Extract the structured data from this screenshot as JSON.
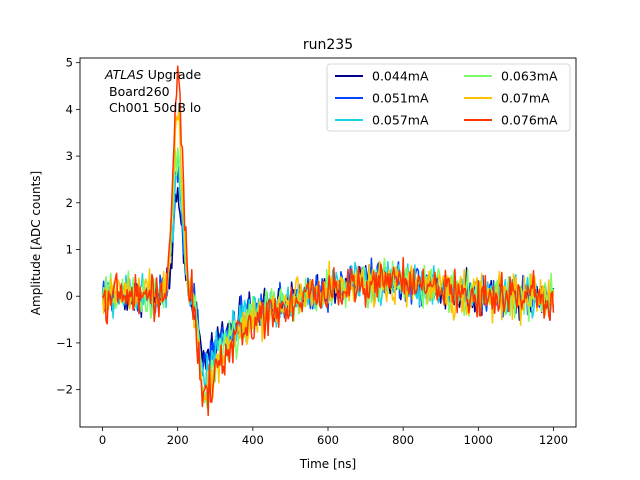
{
  "chart_data": {
    "type": "line",
    "title": "run235",
    "xlabel": "Time [ns]",
    "ylabel": "Amplitude [ADC counts]",
    "xlim": [
      -60,
      1260
    ],
    "ylim": [
      -2.8,
      5.1
    ],
    "xticks": [
      0,
      200,
      400,
      600,
      800,
      1000,
      1200
    ],
    "yticks": [
      -2,
      -1,
      0,
      1,
      2,
      3,
      4,
      5
    ],
    "grid": false,
    "legend_position": "top-right",
    "annotation": {
      "line1_italic": "ATLAS",
      "line1_rest": " Upgrade",
      "line2": "Board260",
      "line3": "Ch001 50dB lo"
    },
    "series": [
      {
        "name": "0.044mA",
        "color": "#00008b",
        "peak": 2.0,
        "min": -1.4,
        "noise": 0.35
      },
      {
        "name": "0.051mA",
        "color": "#0044ff",
        "peak": 2.6,
        "min": -1.6,
        "noise": 0.38
      },
      {
        "name": "0.057mA",
        "color": "#19d3e6",
        "peak": 2.8,
        "min": -1.8,
        "noise": 0.4
      },
      {
        "name": "0.063mA",
        "color": "#7cfc6a",
        "peak": 3.1,
        "min": -2.0,
        "noise": 0.42
      },
      {
        "name": "0.07mA",
        "color": "#ffc200",
        "peak": 3.8,
        "min": -2.2,
        "noise": 0.42
      },
      {
        "name": "0.076mA",
        "color": "#ff3300",
        "peak": 4.6,
        "min": -2.4,
        "noise": 0.42
      }
    ],
    "time_range": [
      0,
      1200
    ],
    "time_step_ns": 3.125,
    "pulse_model": {
      "peak_time": 200,
      "trough_time": 270,
      "rise_start": 150,
      "recovery_end": 650,
      "overshoot": 0.35
    }
  }
}
